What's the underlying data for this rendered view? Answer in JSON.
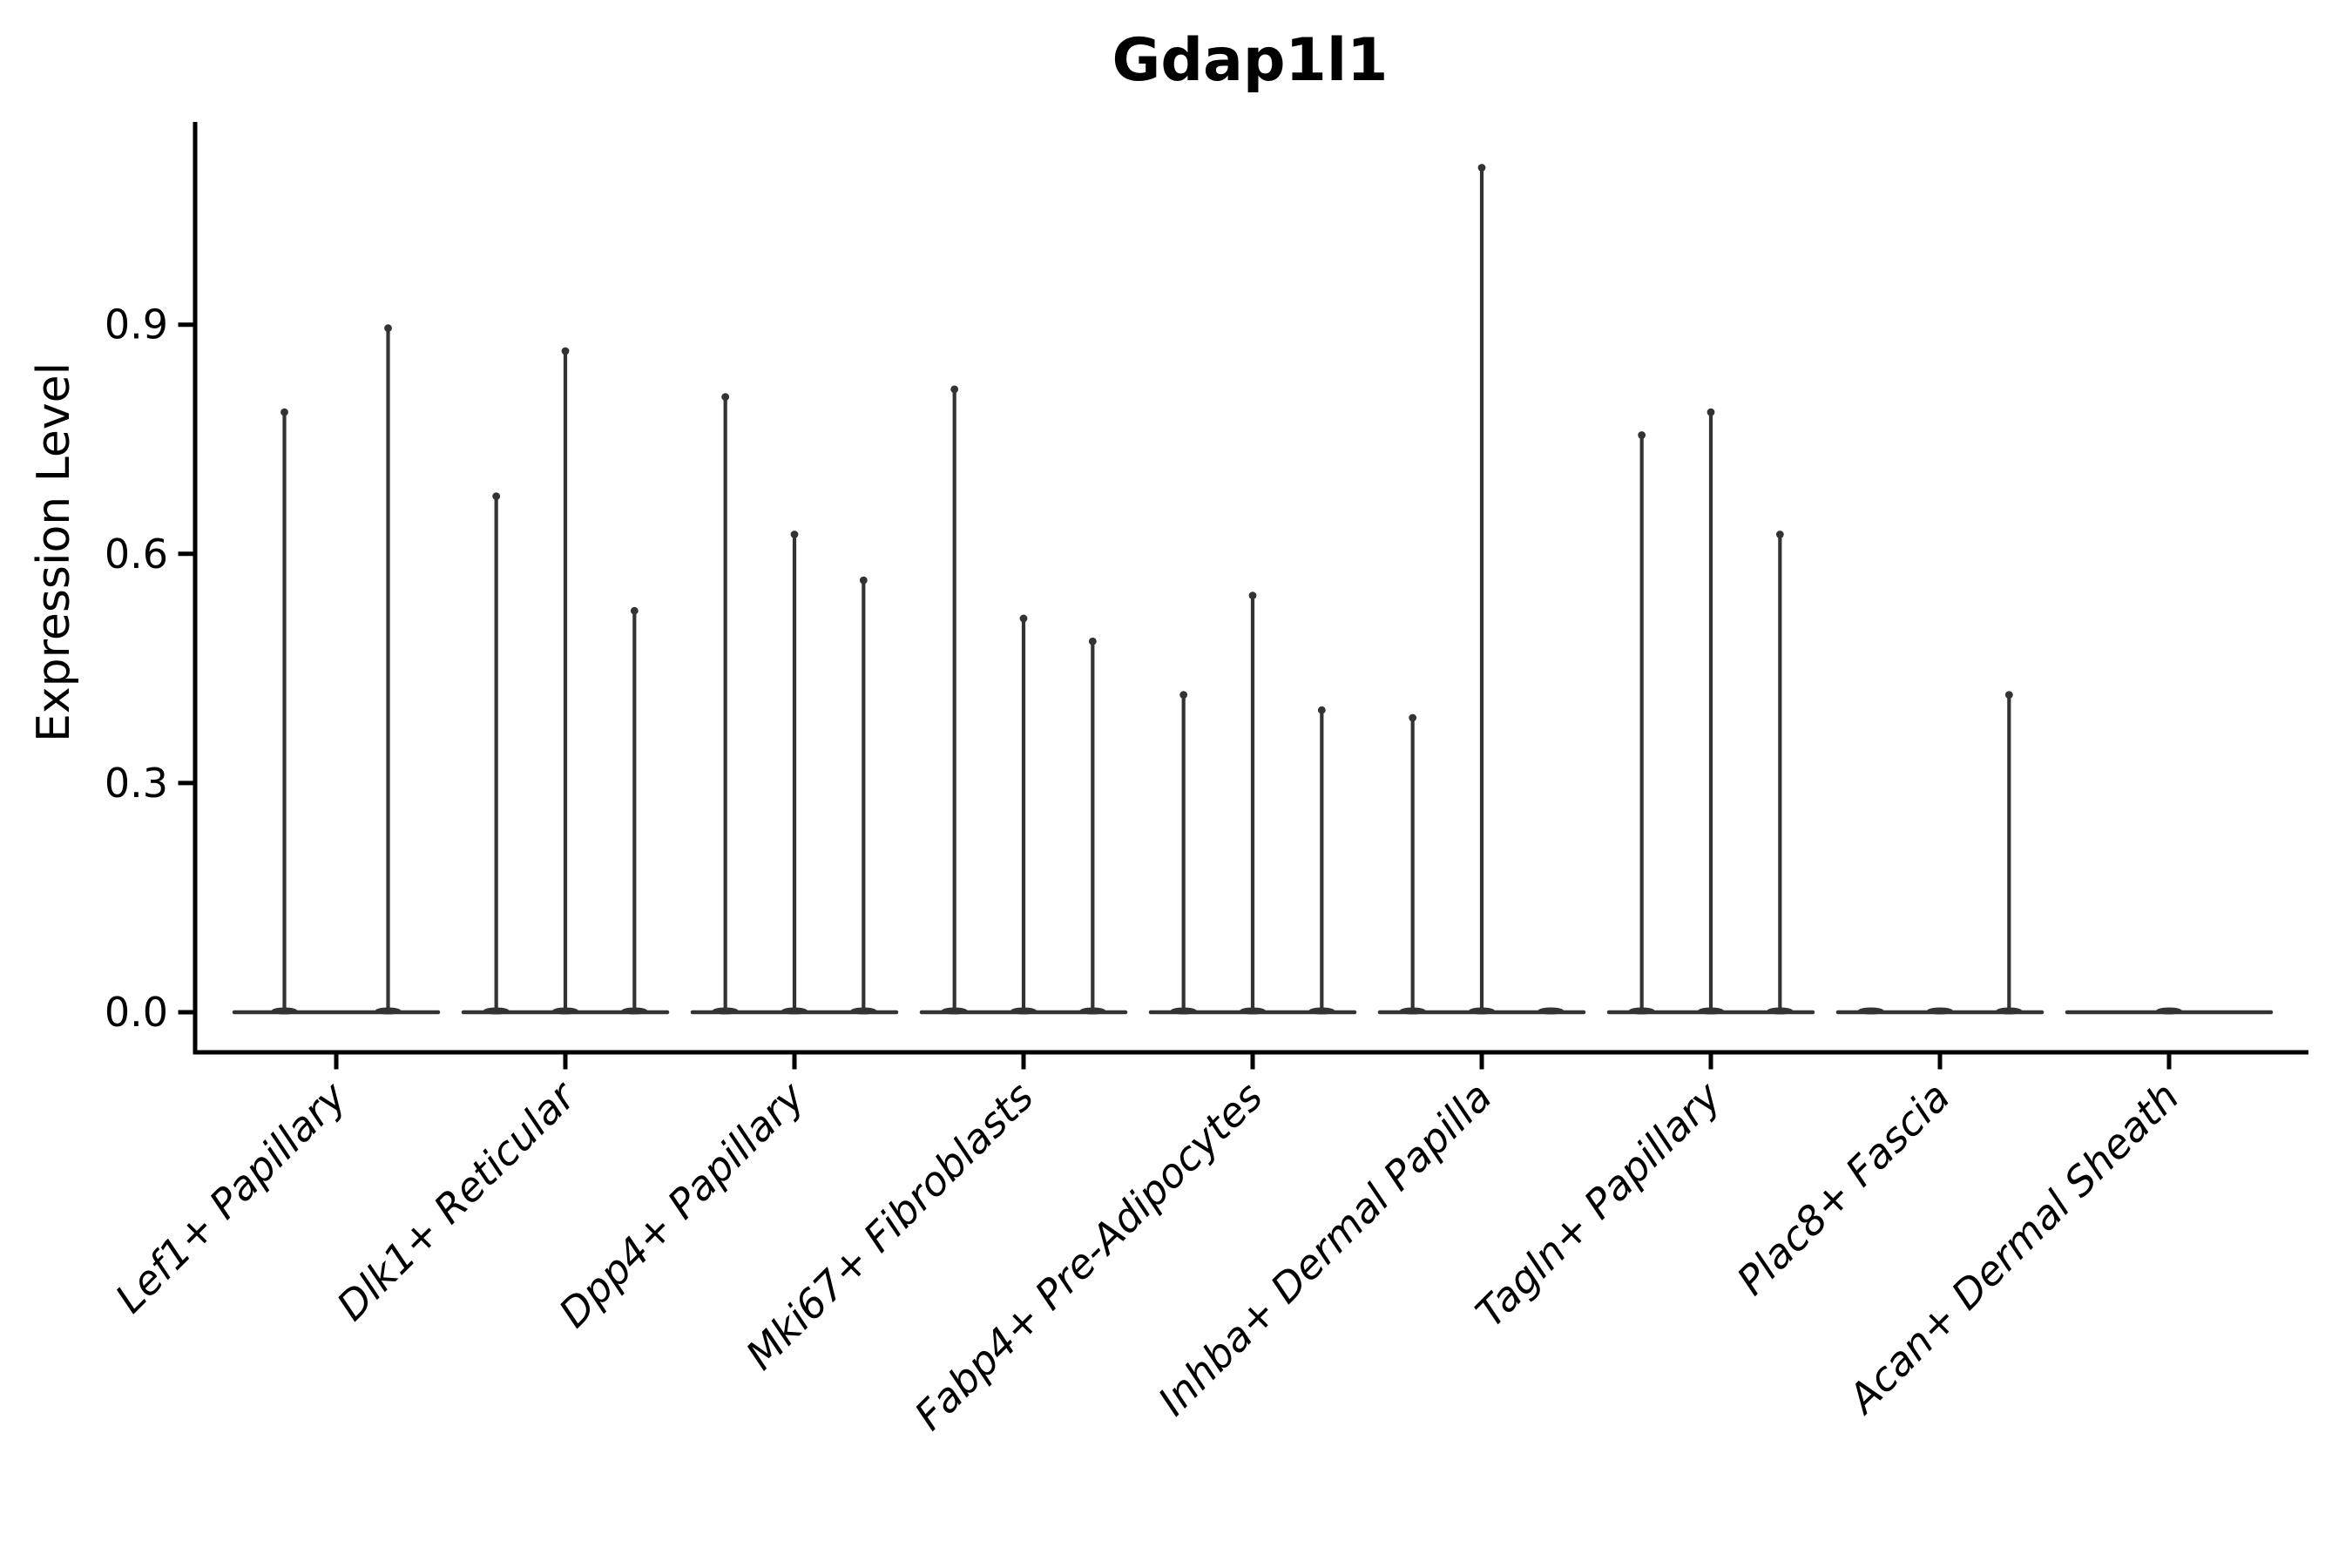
{
  "figure": {
    "title": "Gdap1l1"
  },
  "y_axis": {
    "label": "Expression Level",
    "tick_labels": [
      "0.0",
      "0.3",
      "0.6",
      "0.9"
    ],
    "tick_values": [
      0.0,
      0.3,
      0.6,
      0.9
    ]
  },
  "x_axis": {
    "categories": [
      "Lef1+ Papillary",
      "Dlk1+ Reticular",
      "Dpp4+ Papillary",
      "Mki67+ Fibroblasts",
      "Fabp4+ Pre-Adipocytes",
      "Inhba+ Dermal Papilla",
      "Tagln+ Papillary",
      "Plac8+ Fascia",
      "Acan+ Dermal Sheath"
    ]
  },
  "chart_data": {
    "type": "violin",
    "title": "Gdap1l1",
    "xlabel": "",
    "ylabel": "Expression Level",
    "ylim": [
      0,
      1.17
    ],
    "yticks": [
      0.0,
      0.3,
      0.6,
      0.9
    ],
    "grid": false,
    "legend": "none",
    "note": "Needle-shaped violins: density mass concentrated at 0 (flat base), thin spikes reach each sub-violin's maximum expression. 2-3 sub-violins per category; zero entries are flat violins with no spike.",
    "categories": [
      "Lef1+ Papillary",
      "Dlk1+ Reticular",
      "Dpp4+ Papillary",
      "Mki67+ Fibroblasts",
      "Fabp4+ Pre-Adipocytes",
      "Inhba+ Dermal Papilla",
      "Tagln+ Papillary",
      "Plac8+ Fascia",
      "Acan+ Dermal Sheath"
    ],
    "series": [
      {
        "category": "Lef1+ Papillary",
        "violin_maxima": [
          0.79,
          0.9
        ]
      },
      {
        "category": "Dlk1+ Reticular",
        "violin_maxima": [
          0.68,
          0.87,
          0.53
        ]
      },
      {
        "category": "Dpp4+ Papillary",
        "violin_maxima": [
          0.81,
          0.63,
          0.57
        ]
      },
      {
        "category": "Mki67+ Fibroblasts",
        "violin_maxima": [
          0.82,
          0.52,
          0.49
        ]
      },
      {
        "category": "Fabp4+ Pre-Adipocytes",
        "violin_maxima": [
          0.42,
          0.55,
          0.4
        ]
      },
      {
        "category": "Inhba+ Dermal Papilla",
        "violin_maxima": [
          0.39,
          1.11,
          0
        ]
      },
      {
        "category": "Tagln+ Papillary",
        "violin_maxima": [
          0.76,
          0.79,
          0.63
        ]
      },
      {
        "category": "Plac8+ Fascia",
        "violin_maxima": [
          0,
          0,
          0.42
        ]
      },
      {
        "category": "Acan+ Dermal Sheath",
        "violin_maxima": [
          0
        ]
      }
    ]
  },
  "colors": {
    "background": "#ffffff",
    "violin": "#333333",
    "axis": "#000000",
    "text": "#000000"
  }
}
